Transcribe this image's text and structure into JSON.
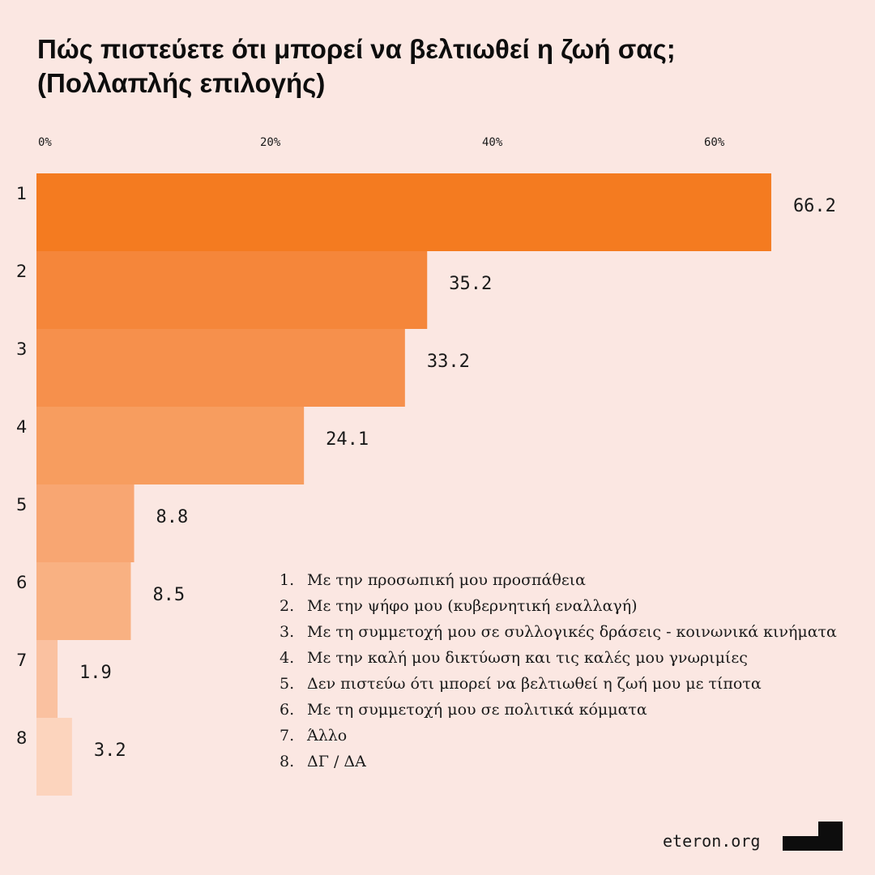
{
  "title": {
    "line1": "Πώς πιστεύετε ότι μπορεί να βελτιωθεί η ζωή σας;",
    "line2": "(Πολλαπλής επιλογής)"
  },
  "chart_data": {
    "type": "bar",
    "orientation": "horizontal",
    "categories": [
      "1",
      "2",
      "3",
      "4",
      "5",
      "6",
      "7",
      "8"
    ],
    "values": [
      66.2,
      35.2,
      33.2,
      24.1,
      8.8,
      8.5,
      1.9,
      3.2
    ],
    "value_labels": [
      "66.2",
      "35.2",
      "33.2",
      "24.1",
      "8.8",
      "8.5",
      "1.9",
      "3.2"
    ],
    "bar_colors": [
      "#f47b20",
      "#f5863a",
      "#f6904c",
      "#f79d5f",
      "#f8a672",
      "#f9b182",
      "#fac1a0",
      "#fcd4bd"
    ],
    "xticks": [
      0,
      20,
      40,
      60
    ],
    "xtick_labels": [
      "0%",
      "20%",
      "40%",
      "60%"
    ],
    "xlim": [
      0,
      70
    ],
    "legend": [
      {
        "num": "1.",
        "text": "Με την προσωπική μου προσπάθεια"
      },
      {
        "num": "2.",
        "text": "Με την ψήφο μου (κυβερνητική εναλλαγή)"
      },
      {
        "num": "3.",
        "text": "Με τη συμμετοχή μου σε συλλογικές δράσεις - κοινωνικά κινήματα"
      },
      {
        "num": "4.",
        "text": "Με την καλή μου δικτύωση και τις καλές μου γνωριμίες"
      },
      {
        "num": "5.",
        "text": "Δεν πιστεύω ότι μπορεί να βελτιωθεί η ζωή μου με τίποτα"
      },
      {
        "num": "6.",
        "text": "Με τη συμμετοχή μου σε πολιτικά κόμματα"
      },
      {
        "num": "7.",
        "text": "Άλλο"
      },
      {
        "num": "8.",
        "text": "ΔΓ / ΔΑ"
      }
    ]
  },
  "footer": {
    "brand": "eteron.org"
  },
  "colors": {
    "background": "#fbe7e2",
    "logo": "#0d0d0d"
  }
}
